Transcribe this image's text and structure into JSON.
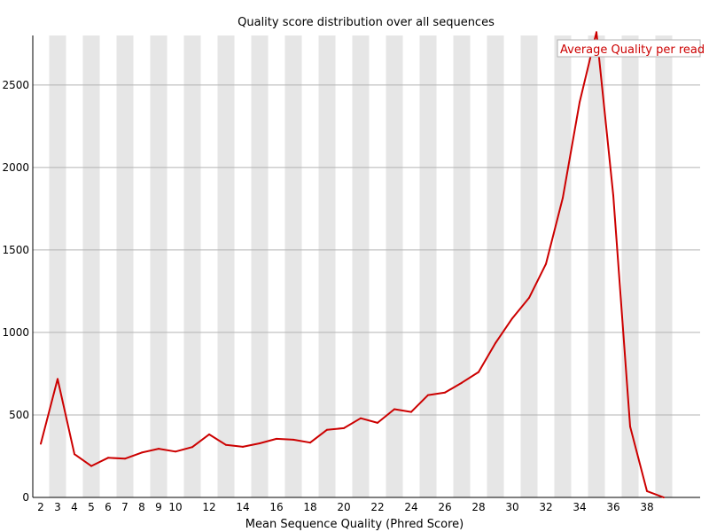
{
  "chart_data": {
    "type": "line",
    "title": "Quality score distribution over all sequences",
    "xlabel": "Mean Sequence Quality (Phred Score)",
    "ylabel": "",
    "xlim": [
      1.5,
      39.5
    ],
    "ylim": [
      0,
      2800
    ],
    "yticks": [
      0,
      500,
      1000,
      1500,
      2000,
      2500
    ],
    "xticks": [
      2,
      3,
      4,
      5,
      6,
      7,
      8,
      9,
      10,
      12,
      14,
      16,
      18,
      20,
      22,
      24,
      26,
      28,
      30,
      32,
      34,
      36,
      38
    ],
    "x": [
      2,
      3,
      4,
      5,
      6,
      7,
      8,
      9,
      10,
      11,
      12,
      13,
      14,
      15,
      16,
      17,
      18,
      19,
      20,
      21,
      22,
      23,
      24,
      25,
      26,
      27,
      28,
      29,
      30,
      31,
      32,
      33,
      34,
      35,
      36,
      37,
      38,
      39
    ],
    "series": [
      {
        "name": "Average Quality per read",
        "color": "#cc0000",
        "values": [
          325,
          718,
          262,
          190,
          240,
          235,
          272,
          295,
          278,
          305,
          382,
          318,
          307,
          328,
          355,
          350,
          332,
          410,
          420,
          480,
          452,
          535,
          518,
          620,
          635,
          695,
          760,
          935,
          1085,
          1210,
          1415,
          1815,
          2395,
          2820,
          1830,
          430,
          38,
          0
        ]
      }
    ],
    "stripe_color": "#e6e6e6",
    "grid": true,
    "legend_position": "top-right"
  }
}
